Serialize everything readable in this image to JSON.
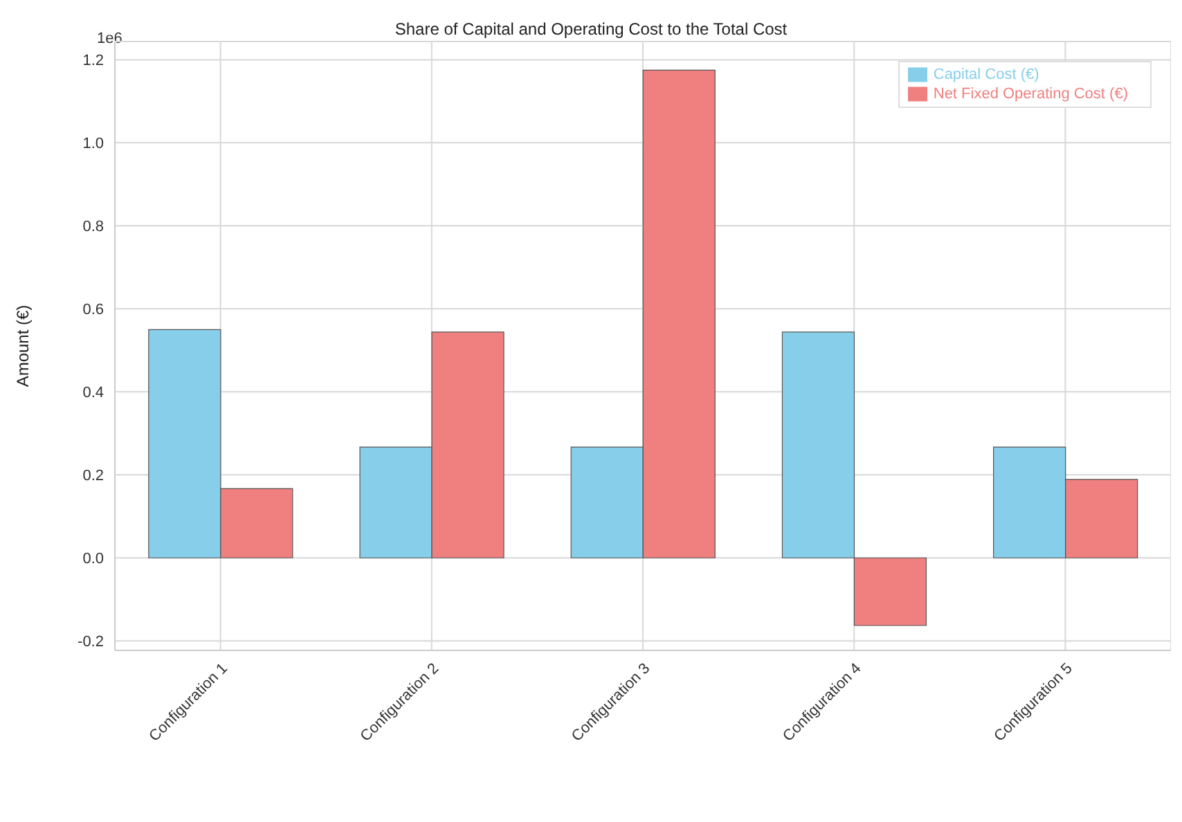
{
  "chart_data": {
    "type": "bar",
    "title": "Share of Capital and Operating Cost to the Total Cost",
    "ylabel": "Amount (€)",
    "annotations": [
      "1e6"
    ],
    "categories": [
      "Configuration 1",
      "Configuration 2",
      "Configuration 3",
      "Configuration 4",
      "Configuration 5"
    ],
    "series": [
      {
        "name": "Capital Cost (€)",
        "color": "#87ceeb",
        "values": [
          0.55,
          0.267,
          0.267,
          0.544,
          0.267
        ]
      },
      {
        "name": "Net Fixed Operating Cost (€)",
        "color": "#f08080",
        "values": [
          0.167,
          0.544,
          1.175,
          -0.163,
          0.189
        ]
      }
    ],
    "ylim": [
      -0.223,
      1.244
    ],
    "yticks": [
      -0.2,
      {
        "value": 0,
        "label": "0.0"
      },
      0.2,
      0.4,
      0.6,
      0.8,
      {
        "value": 1,
        "label": "1.0"
      },
      1.2
    ],
    "grid": true,
    "legend": "top right"
  }
}
